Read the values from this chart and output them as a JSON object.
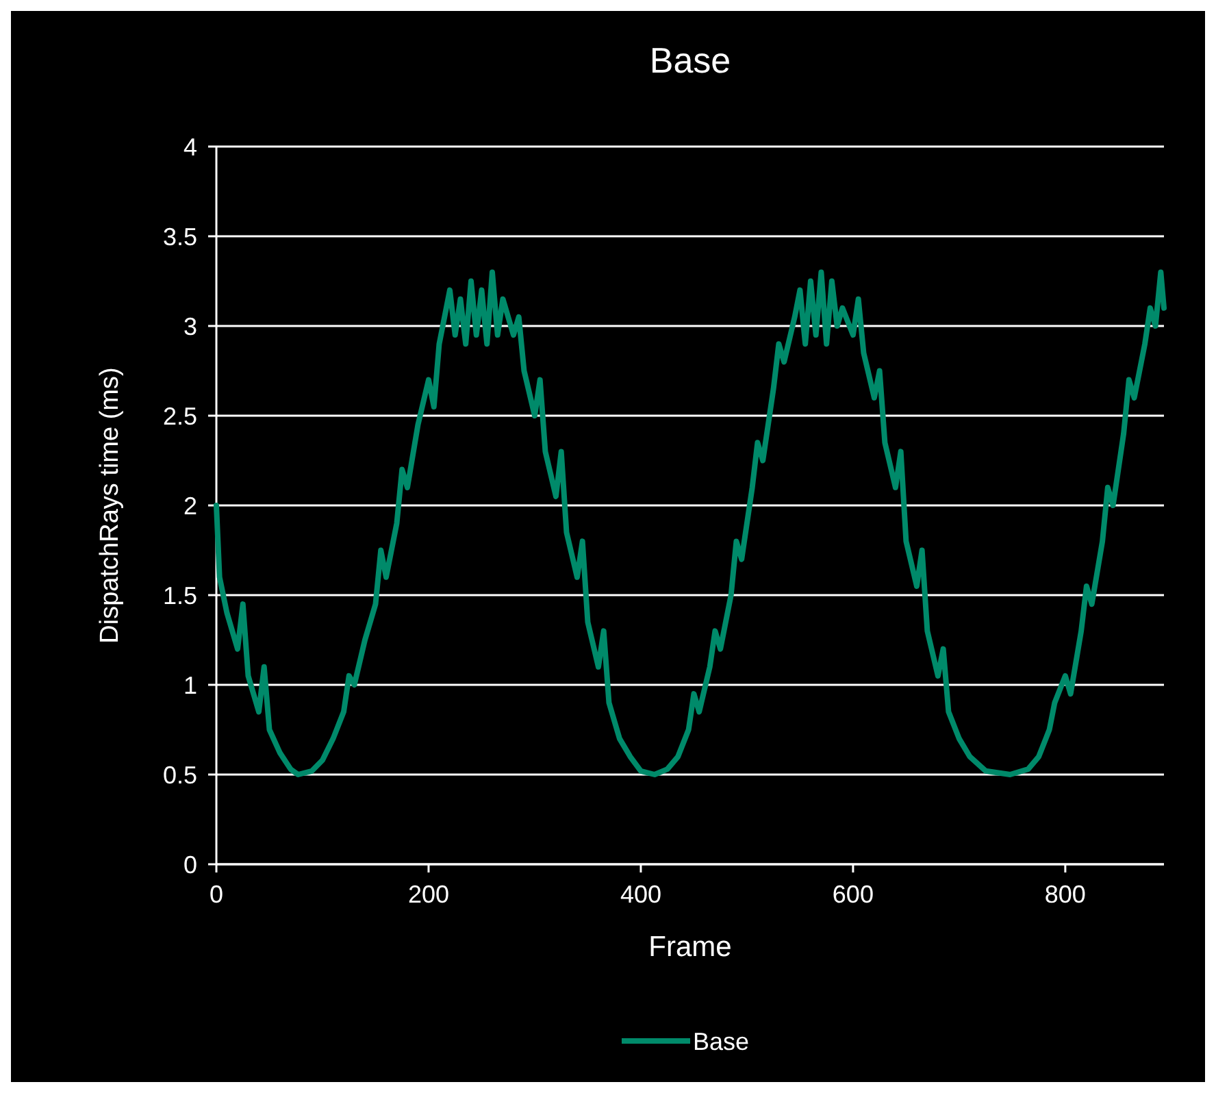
{
  "chart_data": {
    "type": "line",
    "title": "Base",
    "xlabel": "Frame",
    "ylabel": "DispatchRays time (ms)",
    "xlim": [
      0,
      893
    ],
    "xticks": [
      0,
      200,
      400,
      600,
      800
    ],
    "ylim": [
      0,
      4
    ],
    "yticks": [
      0,
      0.5,
      1,
      1.5,
      2,
      2.5,
      3,
      3.5,
      4
    ],
    "grid": "y",
    "legend": "bottom",
    "line_style": "solid",
    "marker": "none",
    "series": [
      {
        "name": "Base",
        "color": "#008a6a",
        "x": [
          0,
          3,
          10,
          20,
          25,
          30,
          40,
          45,
          50,
          60,
          70,
          77,
          90,
          100,
          110,
          120,
          125,
          130,
          140,
          150,
          155,
          160,
          170,
          175,
          180,
          190,
          200,
          205,
          210,
          215,
          220,
          225,
          230,
          235,
          240,
          245,
          250,
          255,
          260,
          265,
          270,
          280,
          285,
          290,
          300,
          305,
          310,
          320,
          325,
          330,
          340,
          345,
          350,
          360,
          365,
          370,
          380,
          390,
          400,
          413,
          425,
          435,
          445,
          450,
          455,
          465,
          470,
          475,
          485,
          490,
          495,
          505,
          510,
          515,
          525,
          530,
          535,
          545,
          550,
          555,
          560,
          565,
          570,
          575,
          580,
          585,
          590,
          600,
          605,
          610,
          620,
          625,
          630,
          640,
          645,
          650,
          660,
          665,
          670,
          680,
          685,
          690,
          700,
          710,
          725,
          748,
          765,
          775,
          785,
          790,
          800,
          805,
          815,
          820,
          825,
          835,
          840,
          845,
          855,
          860,
          865,
          875,
          880,
          885,
          890,
          893
        ],
        "values": [
          2.0,
          1.6,
          1.4,
          1.2,
          1.45,
          1.05,
          0.85,
          1.1,
          0.75,
          0.62,
          0.53,
          0.5,
          0.52,
          0.58,
          0.7,
          0.85,
          1.05,
          1.0,
          1.25,
          1.45,
          1.75,
          1.6,
          1.9,
          2.2,
          2.1,
          2.45,
          2.7,
          2.55,
          2.9,
          3.05,
          3.2,
          2.95,
          3.15,
          2.9,
          3.25,
          2.95,
          3.2,
          2.9,
          3.3,
          2.95,
          3.15,
          2.95,
          3.05,
          2.75,
          2.5,
          2.7,
          2.3,
          2.05,
          2.3,
          1.85,
          1.6,
          1.8,
          1.35,
          1.1,
          1.3,
          0.9,
          0.7,
          0.6,
          0.52,
          0.5,
          0.53,
          0.6,
          0.75,
          0.95,
          0.85,
          1.1,
          1.3,
          1.2,
          1.5,
          1.8,
          1.7,
          2.1,
          2.35,
          2.25,
          2.65,
          2.9,
          2.8,
          3.05,
          3.2,
          2.9,
          3.25,
          2.95,
          3.3,
          2.9,
          3.25,
          3.0,
          3.1,
          2.95,
          3.15,
          2.85,
          2.6,
          2.75,
          2.35,
          2.1,
          2.3,
          1.8,
          1.55,
          1.75,
          1.3,
          1.05,
          1.2,
          0.85,
          0.7,
          0.6,
          0.52,
          0.5,
          0.53,
          0.6,
          0.75,
          0.9,
          1.05,
          0.95,
          1.3,
          1.55,
          1.45,
          1.8,
          2.1,
          2.0,
          2.4,
          2.7,
          2.6,
          2.9,
          3.1,
          3.0,
          3.3,
          3.1
        ]
      }
    ]
  }
}
